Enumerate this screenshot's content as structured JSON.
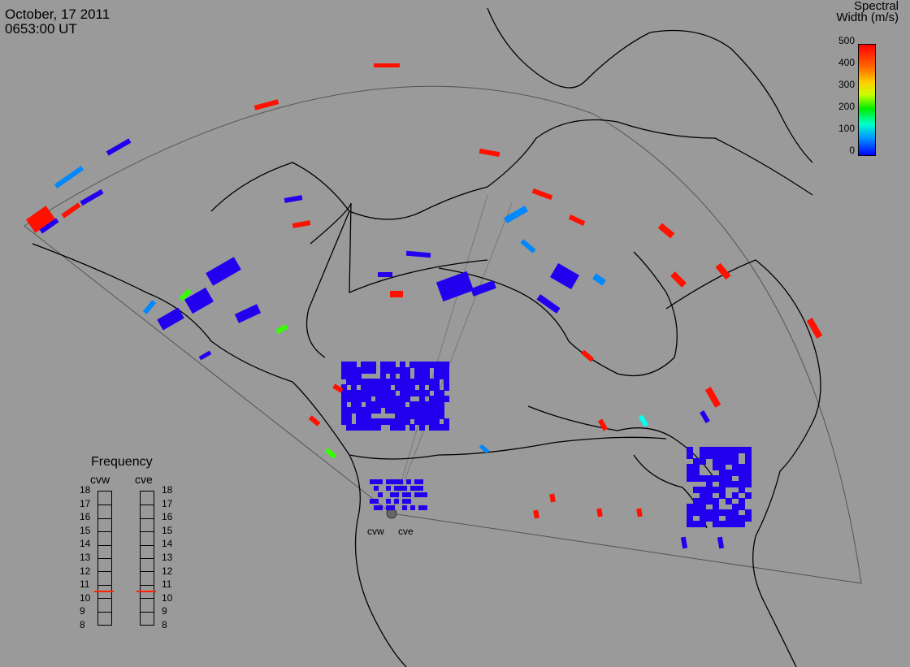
{
  "header": {
    "date": "October, 17 2011",
    "time": "0653:00 UT"
  },
  "colorbar": {
    "title_line1": "Spectral",
    "title_line2": "Width (m/s)",
    "ticks": [
      "500",
      "400",
      "300",
      "200",
      "100",
      "0"
    ],
    "colors": [
      "#0000ff",
      "#0099ff",
      "#00ffcc",
      "#00ee00",
      "#ccff00",
      "#ffcc00",
      "#ff6600",
      "#ff0000"
    ]
  },
  "frequency": {
    "title": "Frequency",
    "radars": [
      "cvw",
      "cve"
    ],
    "levels": [
      "18",
      "17",
      "16",
      "15",
      "14",
      "13",
      "12",
      "11",
      "10",
      "9",
      "8"
    ],
    "selected_mhz": [
      10.5,
      10.5
    ]
  },
  "sites": [
    "cvw",
    "cve"
  ],
  "colors": {
    "background": "#9a9a9a",
    "echo_low": "#2200ee",
    "echo_high": "#ff1100"
  }
}
